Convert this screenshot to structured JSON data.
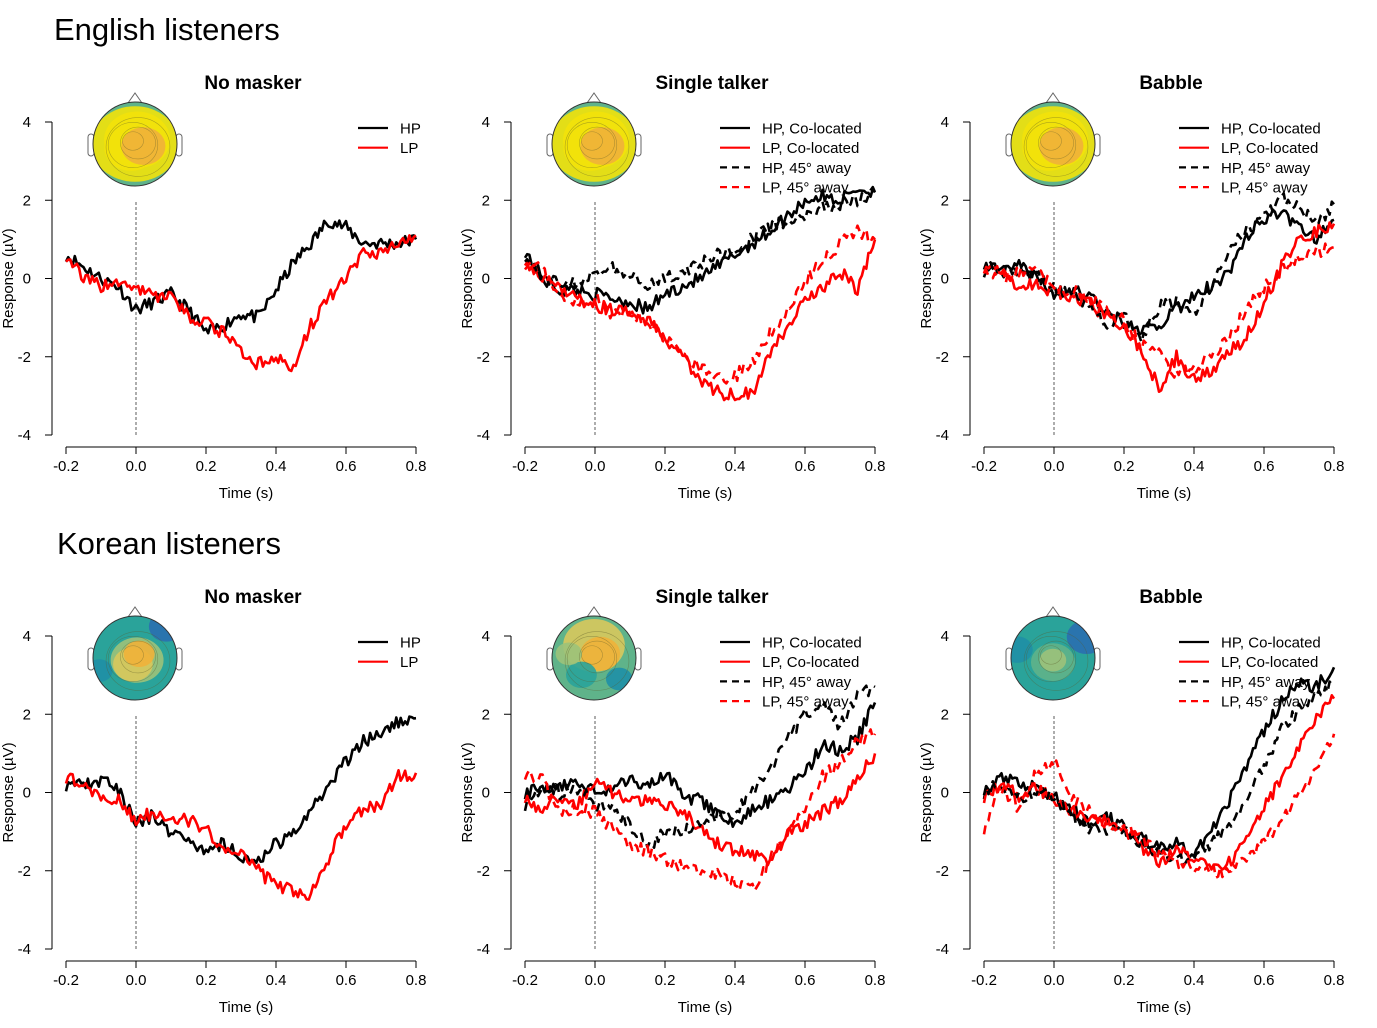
{
  "groups": [
    {
      "title": "English listeners",
      "panels": [
        {
          "title": "No masker",
          "legend": [
            "HP",
            "LP"
          ]
        },
        {
          "title": "Single talker",
          "legend": [
            "HP, Co-located",
            "LP, Co-located",
            "HP, 45° away",
            "LP, 45° away"
          ]
        },
        {
          "title": "Babble",
          "legend": [
            "HP, Co-located",
            "LP, Co-located",
            "HP, 45° away",
            "LP, 45° away"
          ]
        }
      ]
    },
    {
      "title": "Korean listeners",
      "panels": [
        {
          "title": "No masker",
          "legend": [
            "HP",
            "LP"
          ]
        },
        {
          "title": "Single talker",
          "legend": [
            "HP, Co-located",
            "LP, Co-located",
            "HP, 45° away",
            "LP, 45° away"
          ]
        },
        {
          "title": "Babble",
          "legend": [
            "HP, Co-located",
            "LP, Co-located",
            "HP, 45° away",
            "LP, 45° away"
          ]
        }
      ]
    }
  ],
  "colors": {
    "hp": "#000000",
    "lp": "#ff0000",
    "accent_warm": "#f2e20a",
    "accent_cool": "#1f5fa8"
  },
  "chart_data": [
    {
      "type": "line",
      "group": "English listeners",
      "title": "No masker",
      "xlabel": "Time (s)",
      "ylabel": "Response (µV)",
      "xlim": [
        -0.2,
        0.8
      ],
      "ylim": [
        -4,
        4
      ],
      "xticks": [
        "-0.2",
        "0.0",
        "0.2",
        "0.4",
        "0.6",
        "0.8"
      ],
      "yticks": [
        "-4",
        "-2",
        "0",
        "2",
        "4"
      ],
      "x": [
        -0.2,
        -0.15,
        -0.1,
        -0.05,
        0.0,
        0.05,
        0.1,
        0.15,
        0.2,
        0.25,
        0.3,
        0.35,
        0.4,
        0.45,
        0.5,
        0.55,
        0.6,
        0.65,
        0.7,
        0.75,
        0.8
      ],
      "topomap": "mostly-yellow",
      "series": [
        {
          "name": "HP",
          "style": "solid",
          "color": "#000000",
          "values": [
            0.6,
            0.3,
            0.0,
            -0.2,
            -0.8,
            -0.6,
            -0.4,
            -0.8,
            -1.4,
            -1.2,
            -0.9,
            -1.0,
            -0.3,
            0.4,
            0.9,
            1.5,
            1.3,
            0.9,
            0.9,
            0.9,
            1.0
          ]
        },
        {
          "name": "LP",
          "style": "solid",
          "color": "#ff0000",
          "values": [
            0.6,
            0.0,
            -0.2,
            -0.1,
            -0.3,
            -0.4,
            -0.5,
            -1.0,
            -1.1,
            -1.4,
            -1.9,
            -2.2,
            -2.0,
            -2.3,
            -1.2,
            -0.5,
            0.0,
            0.6,
            0.7,
            0.9,
            1.1
          ]
        }
      ]
    },
    {
      "type": "line",
      "group": "English listeners",
      "title": "Single talker",
      "xlabel": "Time (s)",
      "ylabel": "Response (µV)",
      "xlim": [
        -0.2,
        0.8
      ],
      "ylim": [
        -4,
        4
      ],
      "xticks": [
        "-0.2",
        "0.0",
        "0.2",
        "0.4",
        "0.6",
        "0.8"
      ],
      "yticks": [
        "-4",
        "-2",
        "0",
        "2",
        "4"
      ],
      "x": [
        -0.2,
        -0.15,
        -0.1,
        -0.05,
        0.0,
        0.05,
        0.1,
        0.15,
        0.2,
        0.25,
        0.3,
        0.35,
        0.4,
        0.45,
        0.5,
        0.55,
        0.6,
        0.65,
        0.7,
        0.75,
        0.8
      ],
      "topomap": "mostly-yellow",
      "series": [
        {
          "name": "HP, Co-located",
          "style": "solid",
          "color": "#000000",
          "values": [
            0.7,
            0.0,
            -0.3,
            -0.3,
            -0.4,
            -0.5,
            -0.6,
            -0.8,
            -0.4,
            -0.2,
            0.0,
            0.3,
            0.6,
            0.9,
            1.2,
            1.6,
            2.0,
            2.1,
            2.0,
            2.3,
            2.2
          ]
        },
        {
          "name": "LP, Co-located",
          "style": "solid",
          "color": "#ff0000",
          "values": [
            0.5,
            0.0,
            -0.3,
            -0.5,
            -0.7,
            -0.8,
            -0.9,
            -1.1,
            -1.5,
            -2.0,
            -2.6,
            -2.9,
            -3.0,
            -2.9,
            -1.9,
            -1.2,
            -0.6,
            -0.3,
            0.2,
            -0.3,
            1.0
          ]
        },
        {
          "name": "HP, 45° away",
          "style": "dashed",
          "color": "#000000",
          "values": [
            0.6,
            0.1,
            -0.2,
            -0.1,
            0.1,
            0.3,
            0.1,
            -0.2,
            0.0,
            0.2,
            0.4,
            0.6,
            0.8,
            1.0,
            1.3,
            1.5,
            1.6,
            1.8,
            1.9,
            2.0,
            2.2
          ]
        },
        {
          "name": "LP, 45° away",
          "style": "dashed",
          "color": "#ff0000",
          "values": [
            0.4,
            0.2,
            -0.4,
            -0.6,
            -0.5,
            -0.9,
            -0.8,
            -1.2,
            -1.5,
            -1.9,
            -2.3,
            -2.6,
            -2.5,
            -2.1,
            -1.4,
            -0.8,
            0.0,
            0.4,
            0.9,
            1.2,
            1.0
          ]
        }
      ]
    },
    {
      "type": "line",
      "group": "English listeners",
      "title": "Babble",
      "xlabel": "Time (s)",
      "ylabel": "Response (µV)",
      "xlim": [
        -0.2,
        0.8
      ],
      "ylim": [
        -4,
        4
      ],
      "xticks": [
        "-0.2",
        "0.0",
        "0.2",
        "0.4",
        "0.6",
        "0.8"
      ],
      "yticks": [
        "-4",
        "-2",
        "0",
        "2",
        "4"
      ],
      "x": [
        -0.2,
        -0.15,
        -0.1,
        -0.05,
        0.0,
        0.05,
        0.1,
        0.15,
        0.2,
        0.25,
        0.3,
        0.35,
        0.4,
        0.45,
        0.5,
        0.55,
        0.6,
        0.65,
        0.7,
        0.75,
        0.8
      ],
      "topomap": "mostly-yellow",
      "series": [
        {
          "name": "HP, Co-located",
          "style": "solid",
          "color": "#000000",
          "values": [
            0.4,
            0.1,
            0.3,
            0.0,
            -0.4,
            -0.3,
            -0.5,
            -0.8,
            -1.1,
            -1.3,
            -1.2,
            -0.8,
            -0.4,
            -0.2,
            0.2,
            1.1,
            1.5,
            1.7,
            1.3,
            1.0,
            1.5
          ]
        },
        {
          "name": "LP, Co-located",
          "style": "solid",
          "color": "#ff0000",
          "values": [
            0.3,
            0.2,
            -0.3,
            -0.1,
            -0.4,
            -0.5,
            -0.6,
            -1.0,
            -1.3,
            -1.8,
            -2.8,
            -2.0,
            -2.6,
            -2.4,
            -1.9,
            -1.5,
            -0.6,
            0.3,
            1.0,
            1.2,
            1.4
          ]
        },
        {
          "name": "HP, 45° away",
          "style": "dashed",
          "color": "#000000",
          "values": [
            0.2,
            0.4,
            0.2,
            0.1,
            -0.2,
            -0.4,
            -0.8,
            -1.2,
            -1.0,
            -1.5,
            -0.7,
            -0.6,
            -0.9,
            -0.3,
            0.8,
            1.2,
            1.6,
            2.1,
            1.8,
            1.4,
            1.9
          ]
        },
        {
          "name": "LP, 45° away",
          "style": "dashed",
          "color": "#ff0000",
          "values": [
            0.3,
            0.0,
            0.2,
            0.3,
            -0.3,
            -0.3,
            -0.5,
            -0.8,
            -1.1,
            -1.7,
            -1.9,
            -2.5,
            -2.3,
            -2.0,
            -1.5,
            -0.8,
            -0.2,
            0.2,
            0.5,
            0.7,
            0.8
          ]
        }
      ]
    },
    {
      "type": "line",
      "group": "Korean listeners",
      "title": "No masker",
      "xlabel": "Time (s)",
      "ylabel": "Response (µV)",
      "xlim": [
        -0.2,
        0.8
      ],
      "ylim": [
        -4,
        4
      ],
      "xticks": [
        "-0.2",
        "0.0",
        "0.2",
        "0.4",
        "0.6",
        "0.8"
      ],
      "yticks": [
        "-4",
        "-2",
        "0",
        "2",
        "4"
      ],
      "x": [
        -0.2,
        -0.15,
        -0.1,
        -0.05,
        0.0,
        0.05,
        0.1,
        0.15,
        0.2,
        0.25,
        0.3,
        0.35,
        0.4,
        0.45,
        0.5,
        0.55,
        0.6,
        0.65,
        0.7,
        0.75,
        0.8
      ],
      "topomap": "mixed-teal",
      "series": [
        {
          "name": "HP",
          "style": "solid",
          "color": "#000000",
          "values": [
            0.2,
            0.2,
            0.3,
            0.1,
            -0.8,
            -0.6,
            -1.0,
            -1.2,
            -1.5,
            -1.3,
            -1.6,
            -1.8,
            -1.3,
            -1.1,
            -0.5,
            0.2,
            0.8,
            1.3,
            1.5,
            1.8,
            1.9
          ]
        },
        {
          "name": "LP",
          "style": "solid",
          "color": "#ff0000",
          "values": [
            0.4,
            0.2,
            -0.2,
            -0.2,
            -0.7,
            -0.5,
            -0.6,
            -0.7,
            -0.9,
            -1.5,
            -1.6,
            -2.0,
            -2.4,
            -2.5,
            -2.6,
            -1.7,
            -0.8,
            -0.4,
            -0.3,
            0.4,
            0.5
          ]
        }
      ]
    },
    {
      "type": "line",
      "group": "Korean listeners",
      "title": "Single talker",
      "xlabel": "Time (s)",
      "ylabel": "Response (µV)",
      "xlim": [
        -0.2,
        0.8
      ],
      "ylim": [
        -4,
        4
      ],
      "xticks": [
        "-0.2",
        "0.0",
        "0.2",
        "0.4",
        "0.6",
        "0.8"
      ],
      "yticks": [
        "-4",
        "-2",
        "0",
        "2",
        "4"
      ],
      "x": [
        -0.2,
        -0.15,
        -0.1,
        -0.05,
        0.0,
        0.05,
        0.1,
        0.15,
        0.2,
        0.25,
        0.3,
        0.35,
        0.4,
        0.45,
        0.5,
        0.55,
        0.6,
        0.65,
        0.7,
        0.75,
        0.8
      ],
      "topomap": "mixed-orange",
      "series": [
        {
          "name": "HP, Co-located",
          "style": "solid",
          "color": "#000000",
          "values": [
            0.0,
            0.1,
            0.2,
            0.3,
            0.0,
            0.1,
            0.3,
            0.2,
            0.5,
            -0.1,
            -0.2,
            -0.6,
            -0.8,
            -0.4,
            -0.2,
            0.1,
            0.5,
            1.2,
            1.1,
            1.4,
            2.3
          ]
        },
        {
          "name": "LP, Co-located",
          "style": "solid",
          "color": "#ff0000",
          "values": [
            -0.1,
            -0.5,
            -0.1,
            -0.3,
            0.3,
            0.0,
            -0.3,
            -0.1,
            -0.3,
            -0.5,
            -0.9,
            -1.3,
            -1.5,
            -1.6,
            -1.8,
            -1.1,
            -0.8,
            -0.5,
            -0.2,
            0.3,
            1.0
          ]
        },
        {
          "name": "HP, 45° away",
          "style": "dashed",
          "color": "#000000",
          "values": [
            -0.3,
            0.2,
            0.0,
            0.1,
            -0.3,
            -0.4,
            -0.8,
            -1.4,
            -1.0,
            -1.0,
            -0.8,
            -0.6,
            -0.5,
            0.0,
            0.6,
            1.4,
            2.0,
            2.2,
            1.7,
            2.5,
            2.7
          ]
        },
        {
          "name": "LP, 45° away",
          "style": "dashed",
          "color": "#ff0000",
          "values": [
            0.5,
            0.3,
            -0.5,
            -0.4,
            -0.5,
            -0.9,
            -1.3,
            -1.5,
            -1.7,
            -1.9,
            -2.0,
            -2.1,
            -2.3,
            -2.5,
            -1.7,
            -1.0,
            -0.4,
            0.4,
            0.8,
            1.3,
            1.5
          ]
        }
      ]
    },
    {
      "type": "line",
      "group": "Korean listeners",
      "title": "Babble",
      "xlabel": "Time (s)",
      "ylabel": "Response (µV)",
      "xlim": [
        -0.2,
        0.8
      ],
      "ylim": [
        -4,
        4
      ],
      "xticks": [
        "-0.2",
        "0.0",
        "0.2",
        "0.4",
        "0.6",
        "0.8"
      ],
      "yticks": [
        "-4",
        "-2",
        "0",
        "2",
        "4"
      ],
      "x": [
        -0.2,
        -0.15,
        -0.1,
        -0.05,
        0.0,
        0.05,
        0.1,
        0.15,
        0.2,
        0.25,
        0.3,
        0.35,
        0.4,
        0.45,
        0.5,
        0.55,
        0.6,
        0.65,
        0.7,
        0.75,
        0.8
      ],
      "topomap": "mostly-teal",
      "series": [
        {
          "name": "HP, Co-located",
          "style": "solid",
          "color": "#000000",
          "values": [
            0.0,
            0.4,
            0.2,
            0.2,
            -0.1,
            -0.4,
            -0.8,
            -0.6,
            -0.9,
            -1.2,
            -1.4,
            -1.3,
            -1.6,
            -1.0,
            -0.2,
            0.7,
            1.6,
            2.3,
            2.8,
            2.7,
            3.2
          ]
        },
        {
          "name": "LP, Co-located",
          "style": "solid",
          "color": "#ff0000",
          "values": [
            -0.1,
            0.2,
            -0.1,
            0.1,
            -0.2,
            -0.5,
            -0.6,
            -0.7,
            -0.9,
            -1.4,
            -1.8,
            -1.5,
            -1.7,
            -2.0,
            -1.8,
            -1.2,
            -0.4,
            0.4,
            1.2,
            1.9,
            2.4
          ]
        },
        {
          "name": "HP, 45° away",
          "style": "dashed",
          "color": "#000000",
          "values": [
            0.1,
            0.2,
            -0.1,
            0.0,
            -0.1,
            -0.6,
            -0.9,
            -1.1,
            -1.0,
            -1.3,
            -1.5,
            -1.8,
            -1.6,
            -1.3,
            -0.9,
            -0.2,
            0.7,
            1.6,
            2.1,
            2.4,
            2.8
          ]
        },
        {
          "name": "LP, 45° away",
          "style": "dashed",
          "color": "#ff0000",
          "values": [
            -0.9,
            0.1,
            -0.4,
            0.5,
            0.8,
            -0.1,
            -0.5,
            -0.8,
            -0.9,
            -1.2,
            -1.6,
            -1.8,
            -1.9,
            -2.0,
            -2.1,
            -1.6,
            -1.3,
            -0.7,
            -0.1,
            0.6,
            1.5
          ]
        }
      ]
    }
  ]
}
